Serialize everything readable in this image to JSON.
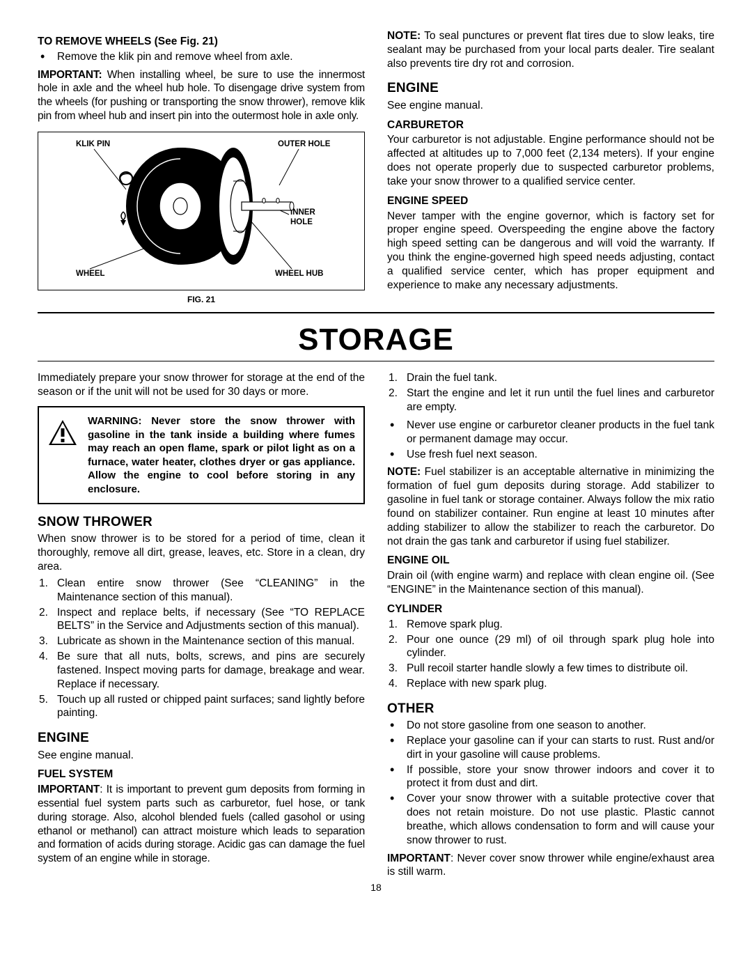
{
  "top": {
    "removeWheelsHead": "TO REMOVE WHEELS (See Fig. 21)",
    "removeWheelsBullet": "Remove the klik pin and remove wheel from axle.",
    "importantWheel": "IMPORTANT: When installing wheel, be sure to use the innermost hole in axle and the wheel hub hole. To disengage drive system from the wheels (for pushing or transporting the snow thrower), remove klik pin from wheel hub and insert pin into the outermost hole in axle only.",
    "figLabels": {
      "klikPin": "KLIK PIN",
      "outerHole": "OUTER HOLE",
      "innerHole1": "INNER",
      "innerHole2": "HOLE",
      "wheel": "WHEEL",
      "wheelHub": "WHEEL HUB"
    },
    "figCaption": "FIG. 21",
    "noteSealant": "NOTE: To seal punctures or prevent flat tires due to slow leaks, tire sealant may be purchased from your local parts dealer. Tire sealant also prevents tire dry rot and corrosion.",
    "engineHead": "ENGINE",
    "seeEngine1": "See engine manual.",
    "carbHead": "CARBURETOR",
    "carbText": "Your carburetor is not adjustable. Engine performance should not be affected at altitudes up to 7,000 feet (2,134 meters). If your engine does not operate properly due to suspected carburetor problems, take your snow thrower to a qualified service center.",
    "speedHead": "ENGINE SPEED",
    "speedText": "Never tamper with the engine governor, which is factory set for proper engine speed. Overspeeding the engine above the factory high speed setting can be dangerous and will void the warranty. If you think the engine-governed high speed needs adjusting, contact a qualified service center, which has proper equipment and experience to make any necessary adjustments."
  },
  "storageTitle": "STORAGE",
  "storage": {
    "intro": "Immediately prepare your snow thrower for storage at the end of the season or if the unit will not be used for 30 days or more.",
    "warning": "WARNING: Never store the snow thrower with gasoline in the tank inside a building where fumes may reach an open flame, spark or pilot light as on a furnace, water heater, clothes dryer or gas appliance. Allow the engine to cool before storing in any enclosure.",
    "snowThrowerHead": "SNOW THROWER",
    "snowThrowerIntro": "When snow thrower is to be stored for a period of time, clean it thoroughly, remove all dirt, grease, leaves, etc. Store in a clean, dry area.",
    "snowList": [
      "Clean entire snow thrower (See “CLEANING” in the Maintenance section of this manual).",
      "Inspect and replace belts, if necessary (See “TO REPLACE BELTS” in the Service and Adjustments section of this manual).",
      "Lubricate as shown in the Maintenance section of this manual.",
      "Be sure that all nuts, bolts, screws, and pins are securely fastened. Inspect moving parts for damage, breakage and wear. Replace if necessary.",
      "Touch up all rusted or chipped paint surfaces; sand lightly before painting."
    ],
    "engineHead2": "ENGINE",
    "seeEngine2": "See engine manual.",
    "fuelSysHead": "FUEL SYSTEM",
    "fuelSysText": "IMPORTANT: It is important to prevent gum deposits from forming in essential fuel system parts such as carburetor, fuel hose, or tank during storage. Also, alcohol blended fuels (called gasohol or using ethanol or methanol) can attract moisture which leads to separation and formation of acids during storage. Acidic gas can damage the fuel system of an engine while in storage.",
    "drainList": [
      "Drain the fuel tank.",
      "Start the engine and let it run until the fuel lines and carburetor are empty."
    ],
    "drainBullets": [
      "Never use engine or carburetor cleaner products in the fuel tank or permanent damage may occur.",
      "Use fresh fuel next season."
    ],
    "stabilizerNote": "NOTE:  Fuel stabilizer is an acceptable alternative in minimizing the formation of fuel gum deposits during storage. Add stabilizer to gasoline in fuel tank or storage container. Always follow the mix ratio found on stabilizer container. Run engine at least 10 minutes after adding stabilizer to allow the stabilizer to reach the carburetor. Do not drain the gas tank and carburetor if using fuel stabilizer.",
    "engineOilHead": "ENGINE OIL",
    "engineOilText": "Drain oil (with engine warm) and replace with clean engine oil. (See “ENGINE” in the Maintenance section of this manual).",
    "cylinderHead": "CYLINDER",
    "cylinderList": [
      "Remove spark plug.",
      "Pour one ounce (29 ml) of oil through spark plug hole into cylinder.",
      "Pull recoil starter handle slowly a few times to distribute oil.",
      "Replace with new spark plug."
    ],
    "otherHead": "OTHER",
    "otherBullets": [
      "Do not store gasoline from one season to another.",
      "Replace your gasoline can if your can starts to rust. Rust and/or dirt in your gasoline will cause problems.",
      "If possible, store your snow thrower indoors and cover it to protect it from dust and dirt.",
      "Cover your snow thrower with a suitable protective cover that does not retain moisture. Do not use plastic. Plastic cannot breathe, which allows condensation to form and will cause your snow thrower to rust."
    ],
    "importantCover": "IMPORTANT: Never cover snow thrower while engine/exhaust area is still warm."
  },
  "pageNum": "18"
}
